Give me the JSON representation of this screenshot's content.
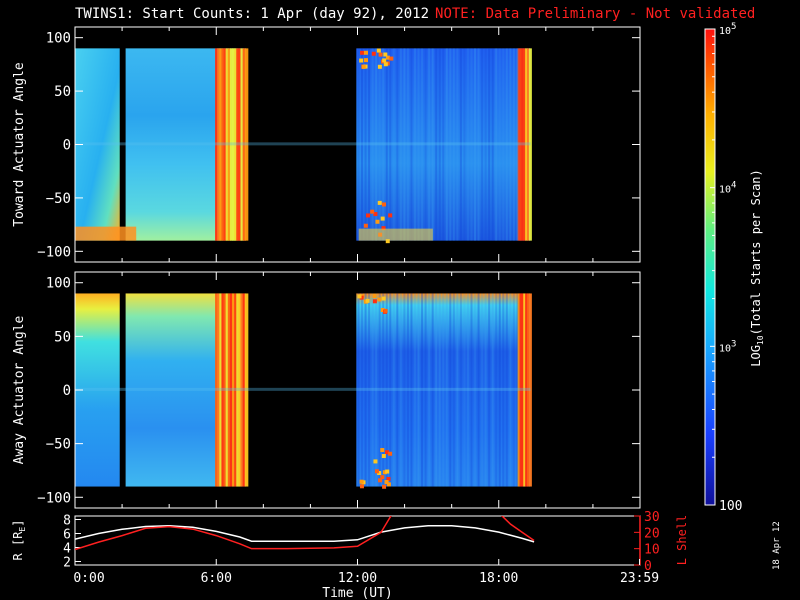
{
  "title": {
    "main": "TWINS1: Start Counts:  1 Apr (day  92), 2012",
    "note": "NOTE: Data Preliminary - Not validated"
  },
  "stamp": "18 Apr 12",
  "chart_data": [
    {
      "type": "heatmap",
      "ylabel": "Toward Actuator Angle",
      "ylim": [
        -110,
        110
      ],
      "yticks": [
        100,
        50,
        0,
        -50,
        -100
      ],
      "xlim": [
        0,
        24
      ],
      "angle_range": [
        -90,
        90
      ],
      "data_blocks_hours": [
        [
          0.0,
          1.9
        ],
        [
          2.15,
          7.25
        ],
        [
          11.95,
          19.35
        ]
      ],
      "dominant_level": "~10^3 counts, higher near ±90° edges, saturated 6:00-7:15 and 19:00"
    },
    {
      "type": "heatmap",
      "ylabel": "Away Actuator Angle",
      "ylim": [
        -110,
        110
      ],
      "yticks": [
        100,
        50,
        0,
        -50,
        -100
      ],
      "xlim": [
        0,
        24
      ],
      "angle_range": [
        -90,
        90
      ],
      "data_blocks_hours": [
        [
          0.0,
          1.9
        ],
        [
          2.15,
          7.25
        ],
        [
          11.95,
          19.35
        ]
      ],
      "dominant_level": "~10^3 counts, low (blue) 12:00-19:00, saturated 6:00-7:15 and 19:00"
    },
    {
      "type": "line",
      "ylabel_left": "R [R",
      "ylabel_left_sub": "E",
      "ylabel_left_close": "]",
      "ylim_left": [
        1.5,
        8.5
      ],
      "yticks_left": [
        8,
        6,
        4,
        2
      ],
      "ylabel_right": "L Shell",
      "ylim_right": [
        0,
        30
      ],
      "yticks_right": [
        30,
        20,
        10,
        0
      ],
      "xlabel": "Time (UT)",
      "xticks": [
        "0:00",
        "6:00",
        "12:00",
        "18:00",
        "23:59"
      ],
      "xticks_hours": [
        0,
        6,
        12,
        18,
        23.98
      ],
      "series": [
        {
          "name": "R",
          "color": "#ffffff",
          "x": [
            0,
            1,
            2,
            3,
            4,
            5,
            6,
            7,
            7.5,
            9,
            11,
            12,
            13,
            14,
            15,
            16,
            17,
            18,
            19,
            19.5
          ],
          "y": [
            5.2,
            6.0,
            6.6,
            7.0,
            7.1,
            6.9,
            6.3,
            5.5,
            4.9,
            4.9,
            4.9,
            5.1,
            6.2,
            6.8,
            7.1,
            7.1,
            6.8,
            6.2,
            5.3,
            4.8
          ]
        },
        {
          "name": "L Shell",
          "color": "#ff2020",
          "x": [
            0,
            1,
            2,
            3,
            4,
            5,
            6,
            7,
            7.5,
            9,
            11,
            12,
            13,
            13.5,
            18,
            18.5,
            19,
            19.5
          ],
          "y": [
            9.5,
            14,
            18,
            22.5,
            23.5,
            22,
            18,
            13,
            10,
            10,
            10.5,
            11.5,
            20,
            32,
            32,
            25,
            20,
            15
          ]
        }
      ]
    }
  ],
  "colorbar": {
    "label": "LOG",
    "label_sub": "10",
    "label_rest": "(Total Starts per Scan)",
    "ticks": [
      {
        "text": "10",
        "sup": "5",
        "value": 100000
      },
      {
        "text": "10",
        "sup": "4",
        "value": 10000
      },
      {
        "text": "10",
        "sup": "3",
        "value": 1000
      },
      {
        "text": "100",
        "sup": "",
        "value": 100
      }
    ],
    "range": [
      100,
      100000
    ]
  },
  "colors": {
    "background": "#000000",
    "note": "#ff2020",
    "axis": "#ffffff"
  }
}
